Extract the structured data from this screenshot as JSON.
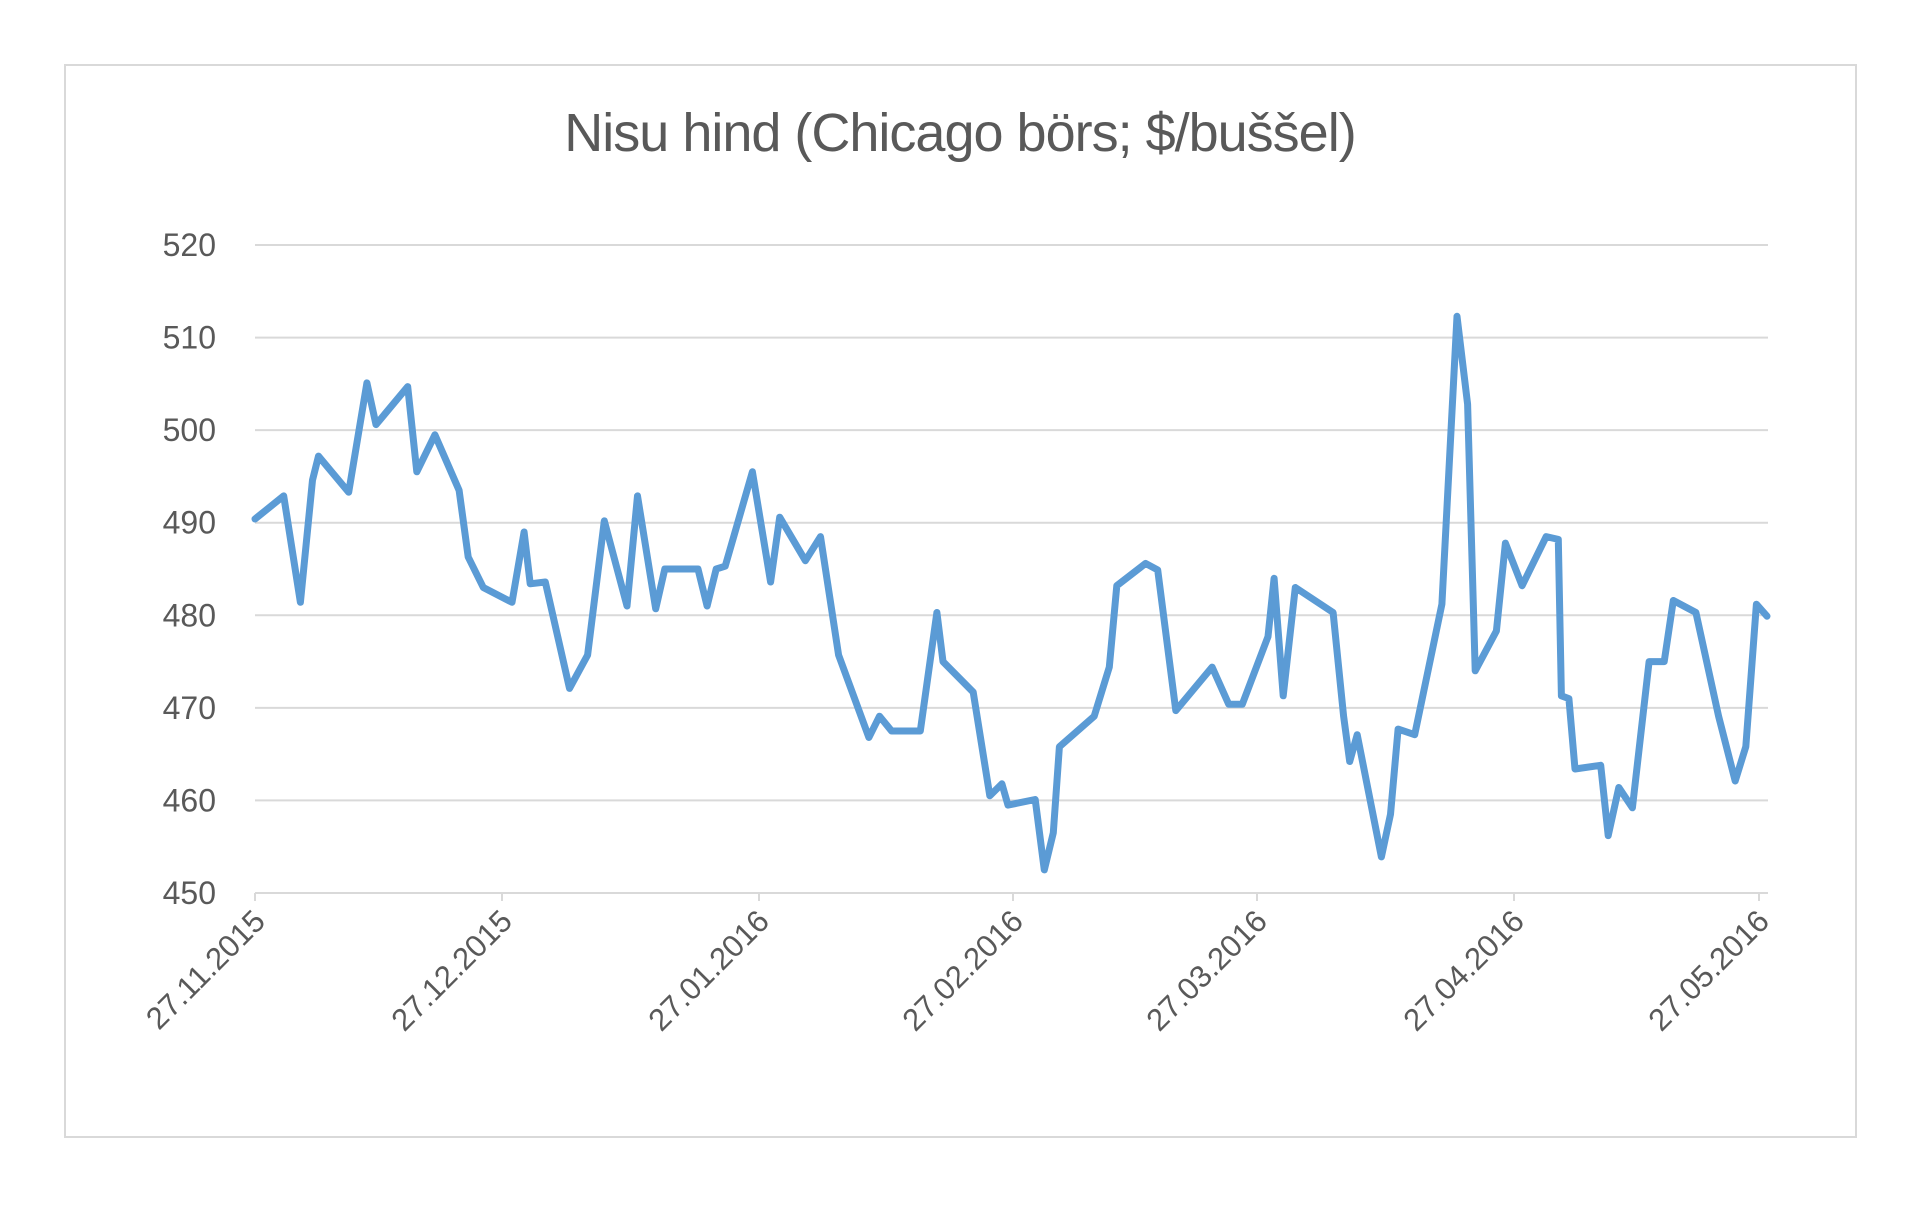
{
  "chart_data": {
    "type": "line",
    "title": "Nisu hind (Chicago börs; $/buššel)",
    "xlabel": "",
    "ylabel": "",
    "ylim": [
      450,
      520
    ],
    "yticks": [
      450,
      460,
      470,
      480,
      490,
      500,
      510,
      520
    ],
    "xticks": [
      "27.11.2015",
      "27.12.2015",
      "27.01.2016",
      "27.02.2016",
      "27.03.2016",
      "27.04.2016",
      "27.05.2016"
    ],
    "grid": true,
    "legend": null,
    "series": [
      {
        "name": "Nisu hind",
        "color": "#5B9BD5",
        "x_frac": [
          0.0,
          0.019,
          0.03,
          0.038,
          0.042,
          0.062,
          0.074,
          0.08,
          0.101,
          0.107,
          0.119,
          0.135,
          0.141,
          0.151,
          0.17,
          0.178,
          0.182,
          0.192,
          0.208,
          0.22,
          0.231,
          0.246,
          0.253,
          0.265,
          0.271,
          0.293,
          0.299,
          0.305,
          0.311,
          0.329,
          0.341,
          0.347,
          0.364,
          0.374,
          0.386,
          0.406,
          0.413,
          0.421,
          0.44,
          0.451,
          0.455,
          0.475,
          0.486,
          0.494,
          0.498,
          0.516,
          0.522,
          0.528,
          0.532,
          0.555,
          0.565,
          0.57,
          0.589,
          0.597,
          0.609,
          0.633,
          0.644,
          0.653,
          0.67,
          0.674,
          0.68,
          0.688,
          0.713,
          0.72,
          0.724,
          0.729,
          0.745,
          0.751,
          0.756,
          0.767,
          0.785,
          0.795,
          0.802,
          0.807,
          0.821,
          0.827,
          0.838,
          0.854,
          0.862,
          0.864,
          0.869,
          0.873,
          0.89,
          0.895,
          0.902,
          0.911,
          0.922,
          0.932,
          0.938,
          0.953,
          0.968,
          0.979,
          0.986,
          0.993,
          1.0
        ],
        "values": [
          490.4,
          492.9,
          481.4,
          494.6,
          497.2,
          493.3,
          505.1,
          500.6,
          504.7,
          495.5,
          499.5,
          493.5,
          486.3,
          483.0,
          481.4,
          489.0,
          483.4,
          483.6,
          472.1,
          475.7,
          490.2,
          481.0,
          492.9,
          480.7,
          485.0,
          485.0,
          481.0,
          485.0,
          485.3,
          495.5,
          483.6,
          490.6,
          485.9,
          488.5,
          475.7,
          466.8,
          469.1,
          467.5,
          467.5,
          480.3,
          475.0,
          471.7,
          460.5,
          461.8,
          459.5,
          460.1,
          452.5,
          456.5,
          465.8,
          469.1,
          474.4,
          483.2,
          485.6,
          484.9,
          469.7,
          474.4,
          470.4,
          470.4,
          477.7,
          484.0,
          471.3,
          483.0,
          480.3,
          469.1,
          464.2,
          467.1,
          453.9,
          458.5,
          467.7,
          467.1,
          481.2,
          512.3,
          502.8,
          474.0,
          478.3,
          487.8,
          483.2,
          488.5,
          488.2,
          471.3,
          471.0,
          463.4,
          463.8,
          456.2,
          461.4,
          459.2,
          475.0,
          475.0,
          481.6,
          480.3,
          469.1,
          462.1,
          465.8,
          481.2,
          479.9
        ]
      }
    ]
  }
}
